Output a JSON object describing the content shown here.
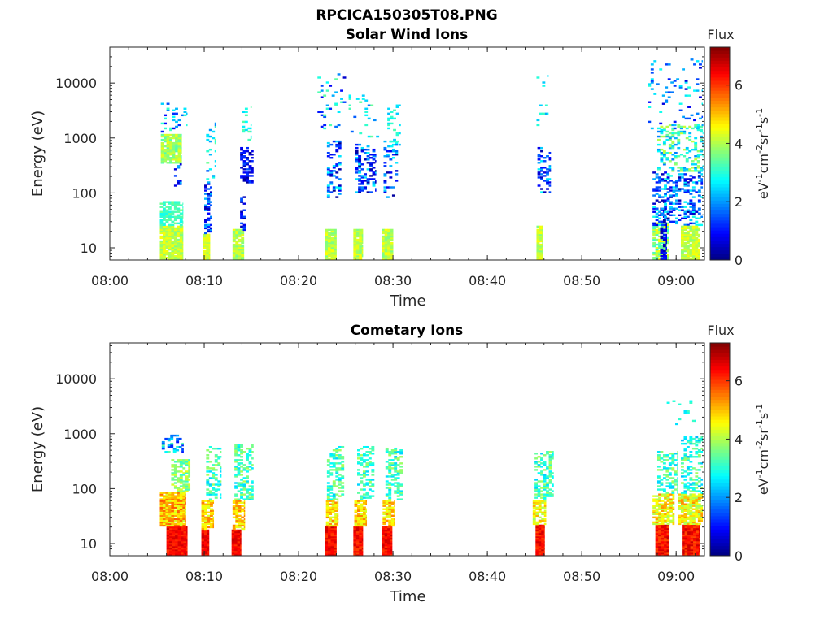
{
  "figure": {
    "title": "RPCICA150305T08.PNG"
  },
  "chart_data": [
    {
      "type": "heatmap",
      "title": "Solar Wind Ions",
      "xlabel": "Time",
      "ylabel": "Energy (eV)",
      "yscale": "log",
      "ylim": [
        6,
        45000
      ],
      "xlim": [
        "08:00",
        "09:03"
      ],
      "xticks": [
        "08:00",
        "08:10",
        "08:20",
        "08:30",
        "08:40",
        "08:50",
        "09:00"
      ],
      "yticks": [
        "10",
        "100",
        "1000",
        "10000"
      ],
      "colorbar": {
        "title": "Flux",
        "label": "eV-1cm-2sr-1s-1",
        "range": [
          0,
          7.3
        ],
        "ticks": [
          "0",
          "2",
          "4",
          "6"
        ]
      },
      "clusters": [
        {
          "t0": 5.3,
          "t1": 7.7,
          "e0": 6,
          "e1": 25,
          "f0": 3.6,
          "f1": 4.6,
          "dens": 0.95
        },
        {
          "t0": 5.3,
          "t1": 7.7,
          "e0": 25,
          "e1": 70,
          "f0": 2.8,
          "f1": 3.6,
          "dens": 0.7
        },
        {
          "t0": 5.4,
          "t1": 7.6,
          "e0": 350,
          "e1": 1200,
          "f0": 3.2,
          "f1": 4.4,
          "dens": 0.9
        },
        {
          "t0": 5.4,
          "t1": 8.2,
          "e0": 1300,
          "e1": 4500,
          "f0": 0.8,
          "f1": 3.2,
          "dens": 0.15
        },
        {
          "t0": 6.8,
          "t1": 7.6,
          "e0": 130,
          "e1": 350,
          "f0": 0.5,
          "f1": 2.5,
          "dens": 0.3
        },
        {
          "t0": 9.9,
          "t1": 10.6,
          "e0": 6,
          "e1": 18,
          "f0": 3.9,
          "f1": 4.6,
          "dens": 0.95
        },
        {
          "t0": 10.0,
          "t1": 10.8,
          "e0": 18,
          "e1": 160,
          "f0": 0.3,
          "f1": 2.3,
          "dens": 0.5
        },
        {
          "t0": 10.2,
          "t1": 11.2,
          "e0": 150,
          "e1": 2000,
          "f0": 1.5,
          "f1": 3.5,
          "dens": 0.12
        },
        {
          "t0": 13.0,
          "t1": 14.2,
          "e0": 6,
          "e1": 22,
          "f0": 3.5,
          "f1": 4.5,
          "dens": 0.9
        },
        {
          "t0": 13.8,
          "t1": 14.4,
          "e0": 20,
          "e1": 90,
          "f0": 0.2,
          "f1": 1.6,
          "dens": 0.5
        },
        {
          "t0": 13.8,
          "t1": 15.2,
          "e0": 150,
          "e1": 700,
          "f0": 0.1,
          "f1": 1.5,
          "dens": 0.45
        },
        {
          "t0": 14.0,
          "t1": 15.0,
          "e0": 900,
          "e1": 4000,
          "f0": 2.4,
          "f1": 3.4,
          "dens": 0.15
        },
        {
          "t0": 22.8,
          "t1": 24.0,
          "e0": 6,
          "e1": 22,
          "f0": 3.6,
          "f1": 4.6,
          "dens": 0.95
        },
        {
          "t0": 23.0,
          "t1": 24.5,
          "e0": 80,
          "e1": 900,
          "f0": 0.1,
          "f1": 2.8,
          "dens": 0.35
        },
        {
          "t0": 22.0,
          "t1": 25.5,
          "e0": 1500,
          "e1": 15000,
          "f0": 0.5,
          "f1": 3.5,
          "dens": 0.08
        },
        {
          "t0": 25.8,
          "t1": 26.8,
          "e0": 6,
          "e1": 22,
          "f0": 3.6,
          "f1": 4.6,
          "dens": 0.95
        },
        {
          "t0": 26.0,
          "t1": 28.2,
          "e0": 100,
          "e1": 800,
          "f0": 0.1,
          "f1": 2.8,
          "dens": 0.35
        },
        {
          "t0": 25.5,
          "t1": 28.5,
          "e0": 1000,
          "e1": 6000,
          "f0": 1.5,
          "f1": 3.5,
          "dens": 0.08
        },
        {
          "t0": 28.8,
          "t1": 30.0,
          "e0": 6,
          "e1": 22,
          "f0": 3.6,
          "f1": 4.6,
          "dens": 0.95
        },
        {
          "t0": 29.0,
          "t1": 30.5,
          "e0": 80,
          "e1": 900,
          "f0": 0.2,
          "f1": 2.8,
          "dens": 0.35
        },
        {
          "t0": 29.4,
          "t1": 30.8,
          "e0": 700,
          "e1": 4000,
          "f0": 2.2,
          "f1": 3.3,
          "dens": 0.25
        },
        {
          "t0": 45.2,
          "t1": 45.9,
          "e0": 6,
          "e1": 25,
          "f0": 3.6,
          "f1": 4.6,
          "dens": 0.95
        },
        {
          "t0": 45.3,
          "t1": 46.7,
          "e0": 100,
          "e1": 700,
          "f0": 0.3,
          "f1": 2.8,
          "dens": 0.35
        },
        {
          "t0": 45.2,
          "t1": 46.4,
          "e0": 1500,
          "e1": 15000,
          "f0": 2.0,
          "f1": 3.2,
          "dens": 0.1
        },
        {
          "t0": 57.5,
          "t1": 59.2,
          "e0": 6,
          "e1": 30,
          "f0": 3.0,
          "f1": 4.6,
          "dens": 0.8
        },
        {
          "t0": 58.3,
          "t1": 59.0,
          "e0": 6,
          "e1": 70,
          "f0": 0.2,
          "f1": 1.2,
          "dens": 0.5
        },
        {
          "t0": 57.5,
          "t1": 62.8,
          "e0": 25,
          "e1": 250,
          "f0": 0.2,
          "f1": 3.0,
          "dens": 0.35
        },
        {
          "t0": 58.0,
          "t1": 62.8,
          "e0": 250,
          "e1": 1800,
          "f0": 1.8,
          "f1": 4.2,
          "dens": 0.35
        },
        {
          "t0": 60.5,
          "t1": 62.5,
          "e0": 6,
          "e1": 25,
          "f0": 3.7,
          "f1": 4.6,
          "dens": 0.9
        },
        {
          "t0": 57.0,
          "t1": 62.8,
          "e0": 1500,
          "e1": 30000,
          "f0": 0.5,
          "f1": 3.0,
          "dens": 0.08
        }
      ]
    },
    {
      "type": "heatmap",
      "title": "Cometary Ions",
      "xlabel": "Time",
      "ylabel": "Energy (eV)",
      "yscale": "log",
      "ylim": [
        6,
        45000
      ],
      "xlim": [
        "08:00",
        "09:03"
      ],
      "xticks": [
        "08:00",
        "08:10",
        "08:20",
        "08:30",
        "08:40",
        "08:50",
        "09:00"
      ],
      "yticks": [
        "10",
        "100",
        "1000",
        "10000"
      ],
      "colorbar": {
        "title": "Flux",
        "label": "eV-1cm-2sr-1s-1",
        "range": [
          0,
          7.3
        ],
        "ticks": [
          "0",
          "2",
          "4",
          "6"
        ]
      },
      "clusters": [
        {
          "t0": 6.0,
          "t1": 8.2,
          "e0": 6,
          "e1": 20,
          "f0": 6.0,
          "f1": 6.8,
          "dens": 1.0
        },
        {
          "t0": 5.3,
          "t1": 8.0,
          "e0": 20,
          "e1": 90,
          "f0": 4.2,
          "f1": 5.8,
          "dens": 0.95
        },
        {
          "t0": 6.5,
          "t1": 8.5,
          "e0": 90,
          "e1": 350,
          "f0": 3.0,
          "f1": 4.4,
          "dens": 0.6
        },
        {
          "t0": 5.5,
          "t1": 7.8,
          "e0": 450,
          "e1": 950,
          "f0": 1.0,
          "f1": 3.4,
          "dens": 0.45
        },
        {
          "t0": 9.7,
          "t1": 10.5,
          "e0": 6,
          "e1": 18,
          "f0": 6.0,
          "f1": 6.8,
          "dens": 1.0
        },
        {
          "t0": 9.7,
          "t1": 11.0,
          "e0": 18,
          "e1": 60,
          "f0": 4.2,
          "f1": 5.5,
          "dens": 0.8
        },
        {
          "t0": 10.2,
          "t1": 11.8,
          "e0": 60,
          "e1": 600,
          "f0": 2.4,
          "f1": 4.0,
          "dens": 0.45
        },
        {
          "t0": 12.9,
          "t1": 13.9,
          "e0": 6,
          "e1": 18,
          "f0": 6.0,
          "f1": 6.8,
          "dens": 1.0
        },
        {
          "t0": 13.0,
          "t1": 14.3,
          "e0": 18,
          "e1": 60,
          "f0": 4.2,
          "f1": 5.5,
          "dens": 0.8
        },
        {
          "t0": 13.2,
          "t1": 15.2,
          "e0": 60,
          "e1": 650,
          "f0": 2.4,
          "f1": 4.0,
          "dens": 0.5
        },
        {
          "t0": 22.8,
          "t1": 24.0,
          "e0": 6,
          "e1": 20,
          "f0": 5.9,
          "f1": 6.8,
          "dens": 1.0
        },
        {
          "t0": 22.9,
          "t1": 24.2,
          "e0": 20,
          "e1": 60,
          "f0": 4.2,
          "f1": 5.5,
          "dens": 0.8
        },
        {
          "t0": 23.0,
          "t1": 24.8,
          "e0": 60,
          "e1": 650,
          "f0": 2.4,
          "f1": 4.0,
          "dens": 0.45
        },
        {
          "t0": 25.8,
          "t1": 26.8,
          "e0": 6,
          "e1": 20,
          "f0": 5.9,
          "f1": 6.8,
          "dens": 1.0
        },
        {
          "t0": 25.9,
          "t1": 27.2,
          "e0": 20,
          "e1": 60,
          "f0": 4.2,
          "f1": 5.5,
          "dens": 0.8
        },
        {
          "t0": 26.2,
          "t1": 28.0,
          "e0": 60,
          "e1": 600,
          "f0": 2.4,
          "f1": 4.0,
          "dens": 0.45
        },
        {
          "t0": 28.8,
          "t1": 29.9,
          "e0": 6,
          "e1": 20,
          "f0": 5.9,
          "f1": 6.8,
          "dens": 1.0
        },
        {
          "t0": 28.9,
          "t1": 30.2,
          "e0": 20,
          "e1": 60,
          "f0": 4.2,
          "f1": 5.5,
          "dens": 0.8
        },
        {
          "t0": 29.2,
          "t1": 31.0,
          "e0": 60,
          "e1": 550,
          "f0": 2.4,
          "f1": 4.0,
          "dens": 0.45
        },
        {
          "t0": 45.1,
          "t1": 46.0,
          "e0": 6,
          "e1": 22,
          "f0": 5.8,
          "f1": 6.8,
          "dens": 1.0
        },
        {
          "t0": 44.8,
          "t1": 46.2,
          "e0": 22,
          "e1": 60,
          "f0": 3.8,
          "f1": 5.2,
          "dens": 0.75
        },
        {
          "t0": 45.0,
          "t1": 47.0,
          "e0": 60,
          "e1": 500,
          "f0": 2.4,
          "f1": 4.0,
          "dens": 0.45
        },
        {
          "t0": 57.8,
          "t1": 59.2,
          "e0": 6,
          "e1": 22,
          "f0": 5.8,
          "f1": 6.8,
          "dens": 1.0
        },
        {
          "t0": 57.5,
          "t1": 59.8,
          "e0": 22,
          "e1": 80,
          "f0": 3.8,
          "f1": 5.4,
          "dens": 0.75
        },
        {
          "t0": 58.0,
          "t1": 60.2,
          "e0": 80,
          "e1": 500,
          "f0": 2.4,
          "f1": 4.0,
          "dens": 0.4
        },
        {
          "t0": 60.6,
          "t1": 62.4,
          "e0": 6,
          "e1": 22,
          "f0": 5.8,
          "f1": 6.8,
          "dens": 1.0
        },
        {
          "t0": 60.2,
          "t1": 62.8,
          "e0": 22,
          "e1": 80,
          "f0": 3.8,
          "f1": 5.4,
          "dens": 0.8
        },
        {
          "t0": 60.5,
          "t1": 62.8,
          "e0": 80,
          "e1": 900,
          "f0": 2.2,
          "f1": 4.0,
          "dens": 0.4
        },
        {
          "t0": 59.0,
          "t1": 62.0,
          "e0": 1500,
          "e1": 4000,
          "f0": 2.5,
          "f1": 3.3,
          "dens": 0.08
        }
      ]
    }
  ]
}
